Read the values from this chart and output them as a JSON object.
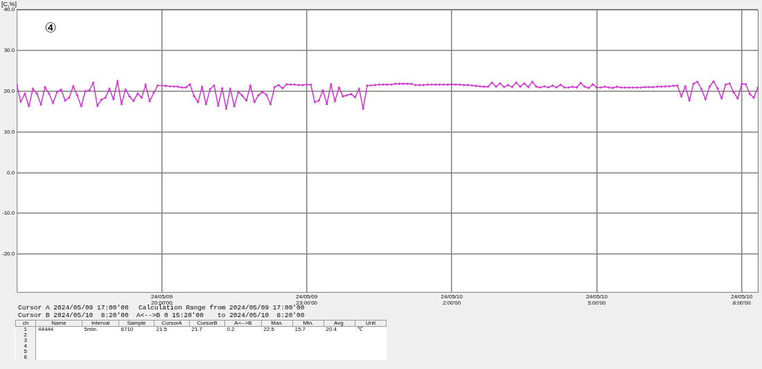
{
  "chart_data": {
    "type": "line",
    "ylabel": "[C,%]",
    "color": "#cc33cc",
    "marker": "cross",
    "grid": true,
    "xlim": [
      "2024-05-09T17:00",
      "2024-05-10T08:20"
    ],
    "ylim": [
      -29.3,
      40
    ],
    "xticks": [
      {
        "value": "2024-05-09T20:00",
        "label": "24/05/09 20:00'00"
      },
      {
        "value": "2024-05-09T23:00",
        "label": "24/05/09 23:00'00"
      },
      {
        "value": "2024-05-10T02:00",
        "label": "24/05/10 2:00'00"
      },
      {
        "value": "2024-05-10T05:00",
        "label": "24/05/10 5:00'00"
      },
      {
        "value": "2024-05-10T08:00",
        "label": "24/05/10 8:00'00"
      }
    ],
    "yticks": [
      {
        "value": -20,
        "label": "-20.0"
      },
      {
        "value": -10,
        "label": "-10.0"
      },
      {
        "value": 0,
        "label": "0.0"
      },
      {
        "value": 10,
        "label": "10.0"
      },
      {
        "value": 20,
        "label": "20.0"
      },
      {
        "value": 30,
        "label": "30.0"
      },
      {
        "value": 40,
        "label": "40.0"
      }
    ],
    "x": [
      "2024-05-09T17:00",
      "2024-05-09T17:05",
      "2024-05-09T17:10",
      "2024-05-09T17:15",
      "2024-05-09T17:20",
      "2024-05-09T17:25",
      "2024-05-09T17:30",
      "2024-05-09T17:35",
      "2024-05-09T17:40",
      "2024-05-09T17:45",
      "2024-05-09T17:50",
      "2024-05-09T17:55",
      "2024-05-09T18:00",
      "2024-05-09T18:05",
      "2024-05-09T18:10",
      "2024-05-09T18:15",
      "2024-05-09T18:20",
      "2024-05-09T18:25",
      "2024-05-09T18:30",
      "2024-05-09T18:35",
      "2024-05-09T18:40",
      "2024-05-09T18:45",
      "2024-05-09T18:50",
      "2024-05-09T18:55",
      "2024-05-09T19:00",
      "2024-05-09T19:05",
      "2024-05-09T19:10",
      "2024-05-09T19:15",
      "2024-05-09T19:20",
      "2024-05-09T19:25",
      "2024-05-09T19:30",
      "2024-05-09T19:35",
      "2024-05-09T19:40",
      "2024-05-09T19:45",
      "2024-05-09T19:50",
      "2024-05-09T19:55",
      "2024-05-09T20:00",
      "2024-05-09T20:05",
      "2024-05-09T20:10",
      "2024-05-09T20:15",
      "2024-05-09T20:20",
      "2024-05-09T20:25",
      "2024-05-09T20:30",
      "2024-05-09T20:35",
      "2024-05-09T20:40",
      "2024-05-09T20:45",
      "2024-05-09T20:50",
      "2024-05-09T20:55",
      "2024-05-09T21:00",
      "2024-05-09T21:05",
      "2024-05-09T21:10",
      "2024-05-09T21:15",
      "2024-05-09T21:20",
      "2024-05-09T21:25",
      "2024-05-09T21:30",
      "2024-05-09T21:35",
      "2024-05-09T21:40",
      "2024-05-09T21:45",
      "2024-05-09T21:50",
      "2024-05-09T21:55",
      "2024-05-09T22:00",
      "2024-05-09T22:05",
      "2024-05-09T22:10",
      "2024-05-09T22:15",
      "2024-05-09T22:20",
      "2024-05-09T22:25",
      "2024-05-09T22:30",
      "2024-05-09T22:35",
      "2024-05-09T22:40",
      "2024-05-09T22:45",
      "2024-05-09T22:50",
      "2024-05-09T22:55",
      "2024-05-09T23:00",
      "2024-05-09T23:05",
      "2024-05-09T23:10",
      "2024-05-09T23:15",
      "2024-05-09T23:20",
      "2024-05-09T23:25",
      "2024-05-09T23:30",
      "2024-05-09T23:35",
      "2024-05-09T23:40",
      "2024-05-09T23:45",
      "2024-05-09T23:50",
      "2024-05-09T23:55",
      "2024-05-10T00:00",
      "2024-05-10T00:05",
      "2024-05-10T00:10",
      "2024-05-10T00:15",
      "2024-05-10T00:20",
      "2024-05-10T00:25",
      "2024-05-10T00:30",
      "2024-05-10T00:35",
      "2024-05-10T00:40",
      "2024-05-10T00:45",
      "2024-05-10T00:50",
      "2024-05-10T00:55",
      "2024-05-10T01:00",
      "2024-05-10T01:05",
      "2024-05-10T01:10",
      "2024-05-10T01:15",
      "2024-05-10T01:20",
      "2024-05-10T01:25",
      "2024-05-10T01:30",
      "2024-05-10T01:35",
      "2024-05-10T01:40",
      "2024-05-10T01:45",
      "2024-05-10T01:50",
      "2024-05-10T01:55",
      "2024-05-10T02:00",
      "2024-05-10T02:05",
      "2024-05-10T02:10",
      "2024-05-10T02:15",
      "2024-05-10T02:20",
      "2024-05-10T02:25",
      "2024-05-10T02:30",
      "2024-05-10T02:35",
      "2024-05-10T02:40",
      "2024-05-10T02:45",
      "2024-05-10T02:50",
      "2024-05-10T02:55",
      "2024-05-10T03:00",
      "2024-05-10T03:05",
      "2024-05-10T03:10",
      "2024-05-10T03:15",
      "2024-05-10T03:20",
      "2024-05-10T03:25",
      "2024-05-10T03:30",
      "2024-05-10T03:35",
      "2024-05-10T03:40",
      "2024-05-10T03:45",
      "2024-05-10T03:50",
      "2024-05-10T03:55",
      "2024-05-10T04:00",
      "2024-05-10T04:05",
      "2024-05-10T04:10",
      "2024-05-10T04:15",
      "2024-05-10T04:20",
      "2024-05-10T04:25",
      "2024-05-10T04:30",
      "2024-05-10T04:35",
      "2024-05-10T04:40",
      "2024-05-10T04:45",
      "2024-05-10T04:50",
      "2024-05-10T04:55",
      "2024-05-10T05:00",
      "2024-05-10T05:05",
      "2024-05-10T05:10",
      "2024-05-10T05:15",
      "2024-05-10T05:20",
      "2024-05-10T05:25",
      "2024-05-10T05:30",
      "2024-05-10T05:35",
      "2024-05-10T05:40",
      "2024-05-10T05:45",
      "2024-05-10T05:50",
      "2024-05-10T05:55",
      "2024-05-10T06:00",
      "2024-05-10T06:05",
      "2024-05-10T06:10",
      "2024-05-10T06:15",
      "2024-05-10T06:20",
      "2024-05-10T06:25",
      "2024-05-10T06:30",
      "2024-05-10T06:35",
      "2024-05-10T06:40",
      "2024-05-10T06:45",
      "2024-05-10T06:50",
      "2024-05-10T06:55",
      "2024-05-10T07:00",
      "2024-05-10T07:05",
      "2024-05-10T07:10",
      "2024-05-10T07:15",
      "2024-05-10T07:20",
      "2024-05-10T07:25",
      "2024-05-10T07:30",
      "2024-05-10T07:35",
      "2024-05-10T07:40",
      "2024-05-10T07:45",
      "2024-05-10T07:50",
      "2024-05-10T07:55",
      "2024-05-10T08:00",
      "2024-05-10T08:05",
      "2024-05-10T08:10",
      "2024-05-10T08:15",
      "2024-05-10T08:20"
    ],
    "values": [
      21.5,
      17.4,
      19.4,
      16.3,
      20.6,
      19.4,
      16.7,
      21.0,
      19.4,
      17.1,
      19.8,
      20.4,
      17.7,
      18.4,
      21.2,
      19.0,
      16.3,
      20.0,
      20.2,
      22.1,
      16.4,
      17.9,
      18.4,
      20.6,
      18.0,
      22.5,
      16.8,
      20.4,
      18.7,
      17.6,
      19.4,
      18.4,
      21.6,
      17.5,
      19.6,
      21.4,
      21.4,
      21.3,
      21.2,
      21.2,
      21.1,
      20.9,
      20.9,
      21.7,
      18.8,
      17.3,
      21.1,
      16.8,
      20.5,
      21.4,
      16.4,
      20.7,
      15.7,
      20.6,
      16.3,
      19.8,
      18.9,
      17.7,
      21.4,
      17.3,
      19.0,
      19.8,
      19.1,
      16.8,
      21.0,
      21.5,
      20.7,
      21.7,
      21.6,
      21.6,
      21.5,
      21.5,
      21.6,
      21.6,
      17.3,
      17.7,
      20.2,
      16.8,
      21.7,
      17.5,
      20.9,
      18.7,
      19.0,
      19.3,
      18.5,
      20.6,
      15.7,
      21.4,
      21.4,
      21.5,
      21.6,
      21.6,
      21.6,
      21.6,
      21.8,
      21.8,
      21.8,
      21.8,
      21.8,
      21.5,
      21.5,
      21.5,
      21.6,
      21.6,
      21.6,
      21.6,
      21.6,
      21.6,
      21.7,
      21.6,
      21.6,
      21.5,
      21.5,
      21.4,
      21.3,
      21.2,
      21.1,
      21.1,
      22.1,
      21.1,
      21.9,
      21.0,
      21.5,
      21.0,
      22.1,
      21.1,
      21.9,
      21.0,
      22.3,
      21.1,
      20.9,
      21.2,
      20.9,
      21.4,
      20.9,
      21.6,
      20.9,
      20.9,
      21.1,
      20.9,
      22.0,
      21.1,
      20.8,
      21.7,
      20.9,
      20.9,
      21.1,
      20.9,
      20.8,
      21.1,
      20.9,
      20.9,
      20.9,
      20.9,
      20.9,
      20.9,
      21.0,
      21.0,
      21.0,
      21.1,
      21.1,
      21.2,
      21.2,
      21.3,
      21.4,
      18.7,
      21.2,
      17.7,
      21.8,
      22.3,
      20.5,
      18.0,
      21.1,
      22.4,
      20.7,
      18.2,
      21.6,
      21.9,
      19.7,
      18.2,
      21.8,
      21.7,
      19.3,
      18.4,
      20.9
    ],
    "annotations": [
      "④",
      "Cursor A 2024/05/09 17:00'00",
      "Cursor B 2024/05/10  8:20'00  A<-->B 0 15:20'00",
      "Calculation Range from 2024/05/09 17:00'00",
      "to 2024/05/10  8:20'00",
      "ch",
      "Name",
      "Interval",
      "Sample",
      "CursorA",
      "CursorB",
      "A<-->B",
      "Max.",
      "Min.",
      "Avg.",
      "Unit",
      "1",
      "44444",
      "5min.",
      "6710",
      "21.5",
      "21.7",
      "0.2",
      "22.5",
      "15.7",
      "20.4",
      "℃",
      "2",
      "3",
      "4",
      "5",
      "6"
    ]
  }
}
